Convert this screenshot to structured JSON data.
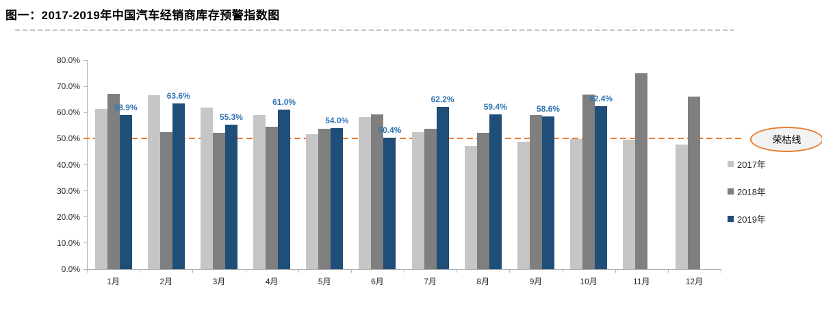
{
  "title": "图一：2017-2019年中国汽车经销商库存预警指数图",
  "chart_data": {
    "type": "bar",
    "title": "图一：2017-2019年中国汽车经销商库存预警指数图",
    "categories": [
      "1月",
      "2月",
      "3月",
      "4月",
      "5月",
      "6月",
      "7月",
      "8月",
      "9月",
      "10月",
      "11月",
      "12月"
    ],
    "series": [
      {
        "name": "2017年",
        "color": "#c6c6c6",
        "values": [
          61.5,
          66.6,
          61.9,
          59.1,
          51.8,
          58.2,
          52.5,
          47.2,
          48.7,
          49.9,
          49.5,
          47.7
        ]
      },
      {
        "name": "2018年",
        "color": "#7f7f7f",
        "values": [
          67.2,
          52.4,
          52.1,
          54.6,
          53.7,
          59.2,
          53.9,
          52.2,
          58.9,
          66.9,
          75.1,
          66.1
        ]
      },
      {
        "name": "2019年",
        "color": "#1f4e79",
        "values": [
          58.9,
          63.6,
          55.3,
          61.0,
          54.0,
          50.4,
          62.2,
          59.4,
          58.6,
          62.4,
          null,
          null
        ],
        "data_labels": [
          "58.9%",
          "63.6%",
          "55.3%",
          "61.0%",
          "54.0%",
          "50.4%",
          "62.2%",
          "59.4%",
          "58.6%",
          "62.4%",
          "",
          ""
        ]
      }
    ],
    "ylim": [
      0,
      80
    ],
    "y_tick_labels": [
      "0.0%",
      "10.0%",
      "20.0%",
      "30.0%",
      "40.0%",
      "50.0%",
      "60.0%",
      "70.0%",
      "80.0%"
    ],
    "grid": false,
    "legend_position": "right",
    "reference_line": {
      "value": 50,
      "label": "荣枯线",
      "color": "#ed7d31"
    },
    "data_label_color": "#2e74b5"
  }
}
